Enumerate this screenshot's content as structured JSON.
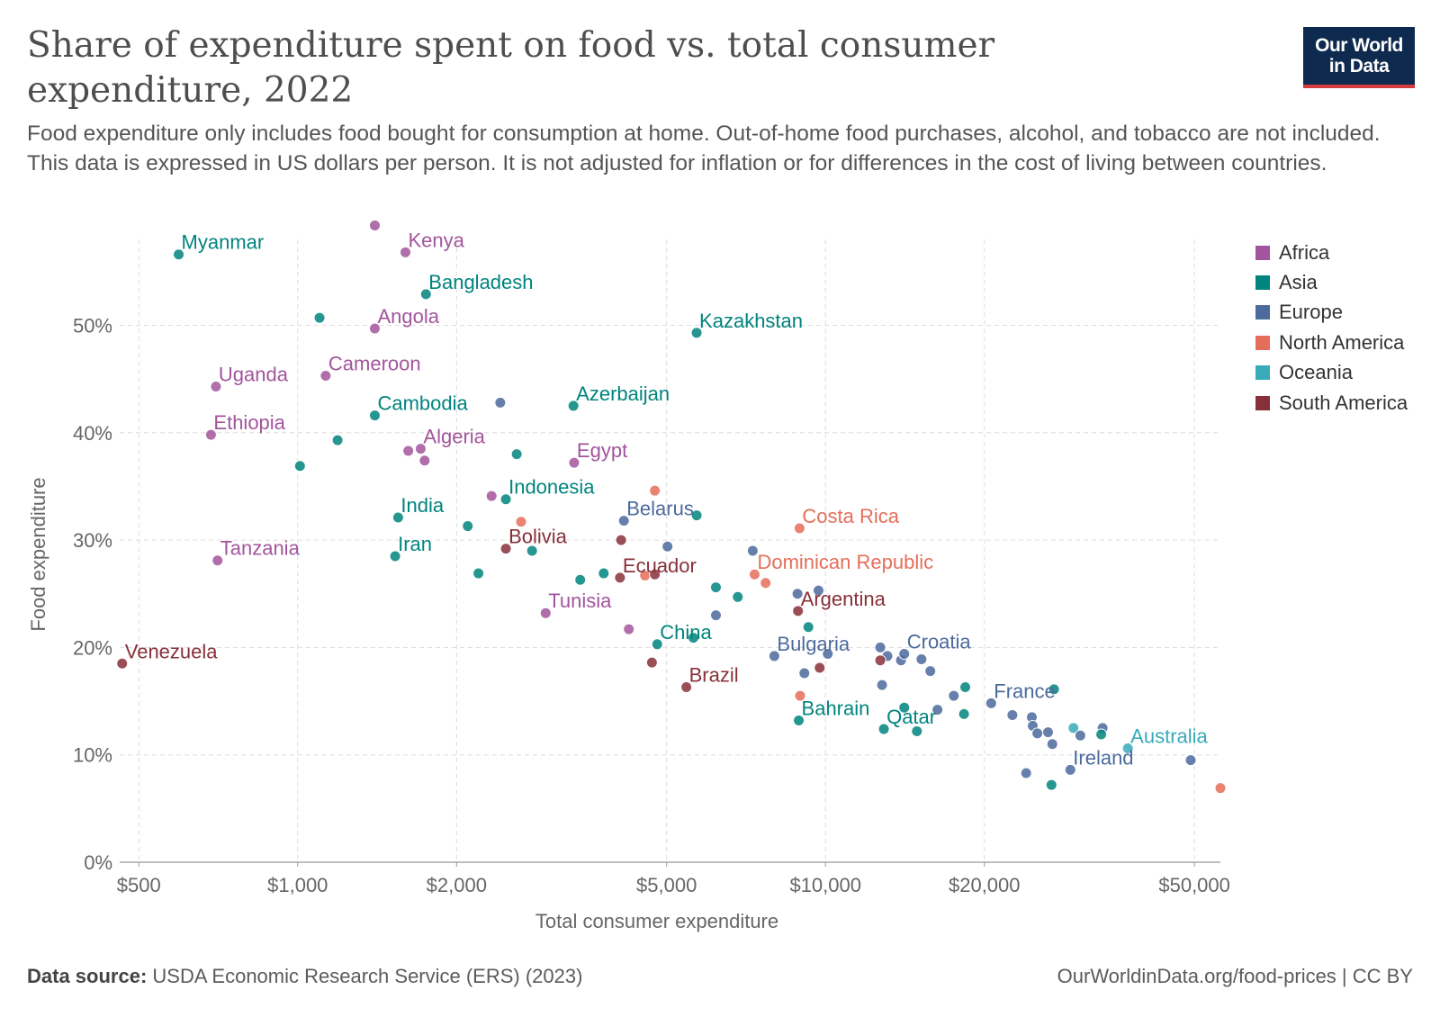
{
  "header": {
    "title": "Share of expenditure spent on food vs. total consumer expenditure, 2022",
    "subtitle": "Food expenditure only includes food bought for consumption at home. Out-of-home food purchases, alcohol, and tobacco are not included. This data is expressed in US dollars per person. It is not adjusted for inflation or for differences in the cost of living between countries.",
    "logo_line1": "Our World",
    "logo_line2": "in Data"
  },
  "colors": {
    "Africa": "#a2559c",
    "Asia": "#00847e",
    "Europe": "#4c6a9c",
    "North America": "#e56e5a",
    "Oceania": "#38aaba",
    "South America": "#883039"
  },
  "legend": [
    {
      "label": "Africa",
      "color": "#a2559c"
    },
    {
      "label": "Asia",
      "color": "#00847e"
    },
    {
      "label": "Europe",
      "color": "#4c6a9c"
    },
    {
      "label": "North America",
      "color": "#e56e5a"
    },
    {
      "label": "Oceania",
      "color": "#38aaba"
    },
    {
      "label": "South America",
      "color": "#883039"
    }
  ],
  "footer": {
    "source_label": "Data source:",
    "source_text": " USDA Economic Research Service (ERS) (2023)",
    "credit": "OurWorldinData.org/food-prices | CC BY"
  },
  "chart_data": {
    "type": "scatter",
    "xlabel": "Total consumer expenditure",
    "ylabel": "Food expenditure",
    "xscale": "log",
    "xlim": [
      460,
      56000
    ],
    "ylim": [
      0,
      58
    ],
    "grid": true,
    "legend_position": "right",
    "x_ticks": [
      {
        "value": 500,
        "label": "$500"
      },
      {
        "value": 1000,
        "label": "$1,000"
      },
      {
        "value": 2000,
        "label": "$2,000"
      },
      {
        "value": 5000,
        "label": "$5,000"
      },
      {
        "value": 10000,
        "label": "$10,000"
      },
      {
        "value": 20000,
        "label": "$20,000"
      },
      {
        "value": 50000,
        "label": "$50,000"
      }
    ],
    "y_ticks": [
      {
        "value": 0,
        "label": "0%"
      },
      {
        "value": 10,
        "label": "10%"
      },
      {
        "value": 20,
        "label": "20%"
      },
      {
        "value": 30,
        "label": "30%"
      },
      {
        "value": 40,
        "label": "40%"
      },
      {
        "value": 50,
        "label": "50%"
      }
    ],
    "points": [
      {
        "x": 595,
        "y": 56.6,
        "region": "Asia",
        "label": "Myanmar"
      },
      {
        "x": 1400,
        "y": 59.3,
        "region": "Africa",
        "label": ""
      },
      {
        "x": 1600,
        "y": 56.8,
        "region": "Africa",
        "label": "Kenya"
      },
      {
        "x": 1750,
        "y": 52.9,
        "region": "Asia",
        "label": "Bangladesh"
      },
      {
        "x": 1100,
        "y": 50.7,
        "region": "Asia",
        "label": ""
      },
      {
        "x": 1400,
        "y": 49.7,
        "region": "Africa",
        "label": "Angola"
      },
      {
        "x": 5700,
        "y": 49.3,
        "region": "Asia",
        "label": "Kazakhstan"
      },
      {
        "x": 700,
        "y": 44.3,
        "region": "Africa",
        "label": "Uganda"
      },
      {
        "x": 1130,
        "y": 45.3,
        "region": "Africa",
        "label": "Cameroon"
      },
      {
        "x": 1400,
        "y": 41.6,
        "region": "Asia",
        "label": "Cambodia"
      },
      {
        "x": 2420,
        "y": 42.8,
        "region": "Europe",
        "label": ""
      },
      {
        "x": 3330,
        "y": 42.5,
        "region": "Asia",
        "label": "Azerbaijan"
      },
      {
        "x": 685,
        "y": 39.8,
        "region": "Africa",
        "label": "Ethiopia"
      },
      {
        "x": 1190,
        "y": 39.3,
        "region": "Asia",
        "label": ""
      },
      {
        "x": 1010,
        "y": 36.9,
        "region": "Asia",
        "label": ""
      },
      {
        "x": 1620,
        "y": 38.3,
        "region": "Africa",
        "label": ""
      },
      {
        "x": 1710,
        "y": 38.5,
        "region": "Africa",
        "label": "Algeria"
      },
      {
        "x": 1740,
        "y": 37.4,
        "region": "Africa",
        "label": ""
      },
      {
        "x": 2600,
        "y": 38.0,
        "region": "Asia",
        "label": ""
      },
      {
        "x": 3340,
        "y": 37.2,
        "region": "Africa",
        "label": "Egypt"
      },
      {
        "x": 2330,
        "y": 34.1,
        "region": "Africa",
        "label": ""
      },
      {
        "x": 2480,
        "y": 33.8,
        "region": "Asia",
        "label": "Indonesia"
      },
      {
        "x": 1550,
        "y": 32.1,
        "region": "Asia",
        "label": "India"
      },
      {
        "x": 4750,
        "y": 34.6,
        "region": "North America",
        "label": ""
      },
      {
        "x": 5700,
        "y": 32.3,
        "region": "Asia",
        "label": ""
      },
      {
        "x": 4150,
        "y": 31.8,
        "region": "Europe",
        "label": "Belarus"
      },
      {
        "x": 2100,
        "y": 31.3,
        "region": "Asia",
        "label": ""
      },
      {
        "x": 2650,
        "y": 31.7,
        "region": "North America",
        "label": ""
      },
      {
        "x": 4100,
        "y": 30.0,
        "region": "South America",
        "label": ""
      },
      {
        "x": 2480,
        "y": 29.2,
        "region": "South America",
        "label": "Bolivia"
      },
      {
        "x": 2780,
        "y": 29.0,
        "region": "Asia",
        "label": ""
      },
      {
        "x": 5020,
        "y": 29.4,
        "region": "Europe",
        "label": ""
      },
      {
        "x": 8930,
        "y": 31.1,
        "region": "North America",
        "label": "Costa Rica"
      },
      {
        "x": 705,
        "y": 28.1,
        "region": "Africa",
        "label": "Tanzania"
      },
      {
        "x": 1530,
        "y": 28.5,
        "region": "Asia",
        "label": "Iran"
      },
      {
        "x": 7280,
        "y": 29.0,
        "region": "Europe",
        "label": ""
      },
      {
        "x": 2200,
        "y": 26.9,
        "region": "Asia",
        "label": ""
      },
      {
        "x": 3430,
        "y": 26.3,
        "region": "Asia",
        "label": ""
      },
      {
        "x": 3800,
        "y": 26.9,
        "region": "Asia",
        "label": ""
      },
      {
        "x": 4080,
        "y": 26.5,
        "region": "South America",
        "label": "Ecuador"
      },
      {
        "x": 4550,
        "y": 26.7,
        "region": "North America",
        "label": ""
      },
      {
        "x": 4750,
        "y": 26.8,
        "region": "South America",
        "label": ""
      },
      {
        "x": 7340,
        "y": 26.8,
        "region": "North America",
        "label": "Dominican Republic"
      },
      {
        "x": 7700,
        "y": 26.0,
        "region": "North America",
        "label": ""
      },
      {
        "x": 6200,
        "y": 25.6,
        "region": "Asia",
        "label": ""
      },
      {
        "x": 6820,
        "y": 24.7,
        "region": "Asia",
        "label": ""
      },
      {
        "x": 8850,
        "y": 25.0,
        "region": "Europe",
        "label": ""
      },
      {
        "x": 9700,
        "y": 25.3,
        "region": "Europe",
        "label": ""
      },
      {
        "x": 8870,
        "y": 23.4,
        "region": "South America",
        "label": "Argentina"
      },
      {
        "x": 2950,
        "y": 23.2,
        "region": "Africa",
        "label": "Tunisia"
      },
      {
        "x": 6200,
        "y": 23.0,
        "region": "Europe",
        "label": ""
      },
      {
        "x": 4240,
        "y": 21.7,
        "region": "Africa",
        "label": ""
      },
      {
        "x": 9280,
        "y": 21.9,
        "region": "Asia",
        "label": ""
      },
      {
        "x": 4800,
        "y": 20.3,
        "region": "Asia",
        "label": "China"
      },
      {
        "x": 5620,
        "y": 20.9,
        "region": "Asia",
        "label": ""
      },
      {
        "x": 8000,
        "y": 19.2,
        "region": "Europe",
        "label": "Bulgaria"
      },
      {
        "x": 10100,
        "y": 19.4,
        "region": "Europe",
        "label": ""
      },
      {
        "x": 12700,
        "y": 20.0,
        "region": "Europe",
        "label": ""
      },
      {
        "x": 13100,
        "y": 19.2,
        "region": "Europe",
        "label": ""
      },
      {
        "x": 13900,
        "y": 18.8,
        "region": "Europe",
        "label": ""
      },
      {
        "x": 14100,
        "y": 19.4,
        "region": "Europe",
        "label": "Croatia"
      },
      {
        "x": 15200,
        "y": 18.9,
        "region": "Europe",
        "label": ""
      },
      {
        "x": 12700,
        "y": 18.8,
        "region": "South America",
        "label": ""
      },
      {
        "x": 4690,
        "y": 18.6,
        "region": "South America",
        "label": ""
      },
      {
        "x": 9750,
        "y": 18.1,
        "region": "South America",
        "label": ""
      },
      {
        "x": 9120,
        "y": 17.6,
        "region": "Europe",
        "label": ""
      },
      {
        "x": 15800,
        "y": 17.8,
        "region": "Europe",
        "label": ""
      },
      {
        "x": 5450,
        "y": 16.3,
        "region": "South America",
        "label": "Brazil"
      },
      {
        "x": 12800,
        "y": 16.5,
        "region": "Europe",
        "label": ""
      },
      {
        "x": 18400,
        "y": 16.3,
        "region": "Asia",
        "label": ""
      },
      {
        "x": 27100,
        "y": 16.1,
        "region": "Asia",
        "label": ""
      },
      {
        "x": 8950,
        "y": 15.5,
        "region": "North America",
        "label": ""
      },
      {
        "x": 17500,
        "y": 15.5,
        "region": "Europe",
        "label": ""
      },
      {
        "x": 20600,
        "y": 14.8,
        "region": "Europe",
        "label": "France"
      },
      {
        "x": 14100,
        "y": 14.4,
        "region": "Asia",
        "label": ""
      },
      {
        "x": 16300,
        "y": 14.2,
        "region": "Europe",
        "label": ""
      },
      {
        "x": 22600,
        "y": 13.7,
        "region": "Europe",
        "label": ""
      },
      {
        "x": 18300,
        "y": 13.8,
        "region": "Asia",
        "label": ""
      },
      {
        "x": 24600,
        "y": 13.5,
        "region": "Europe",
        "label": ""
      },
      {
        "x": 8900,
        "y": 13.2,
        "region": "Asia",
        "label": "Bahrain"
      },
      {
        "x": 12900,
        "y": 12.4,
        "region": "Asia",
        "label": "Qatar"
      },
      {
        "x": 14900,
        "y": 12.2,
        "region": "Asia",
        "label": ""
      },
      {
        "x": 24700,
        "y": 12.7,
        "region": "Europe",
        "label": ""
      },
      {
        "x": 25200,
        "y": 12.0,
        "region": "Europe",
        "label": ""
      },
      {
        "x": 26400,
        "y": 12.1,
        "region": "Europe",
        "label": ""
      },
      {
        "x": 29500,
        "y": 12.5,
        "region": "Oceania",
        "label": ""
      },
      {
        "x": 30400,
        "y": 11.8,
        "region": "Europe",
        "label": ""
      },
      {
        "x": 33500,
        "y": 12.5,
        "region": "Europe",
        "label": ""
      },
      {
        "x": 33300,
        "y": 11.9,
        "region": "Asia",
        "label": ""
      },
      {
        "x": 26900,
        "y": 11.0,
        "region": "Europe",
        "label": ""
      },
      {
        "x": 37400,
        "y": 10.6,
        "region": "Oceania",
        "label": "Australia"
      },
      {
        "x": 29100,
        "y": 8.6,
        "region": "Europe",
        "label": "Ireland"
      },
      {
        "x": 24000,
        "y": 8.3,
        "region": "Europe",
        "label": ""
      },
      {
        "x": 49200,
        "y": 9.5,
        "region": "Europe",
        "label": ""
      },
      {
        "x": 26800,
        "y": 7.2,
        "region": "Asia",
        "label": ""
      },
      {
        "x": 56000,
        "y": 6.9,
        "region": "North America",
        "label": ""
      },
      {
        "x": 465,
        "y": 18.5,
        "region": "South America",
        "label": "Venezuela"
      }
    ]
  }
}
